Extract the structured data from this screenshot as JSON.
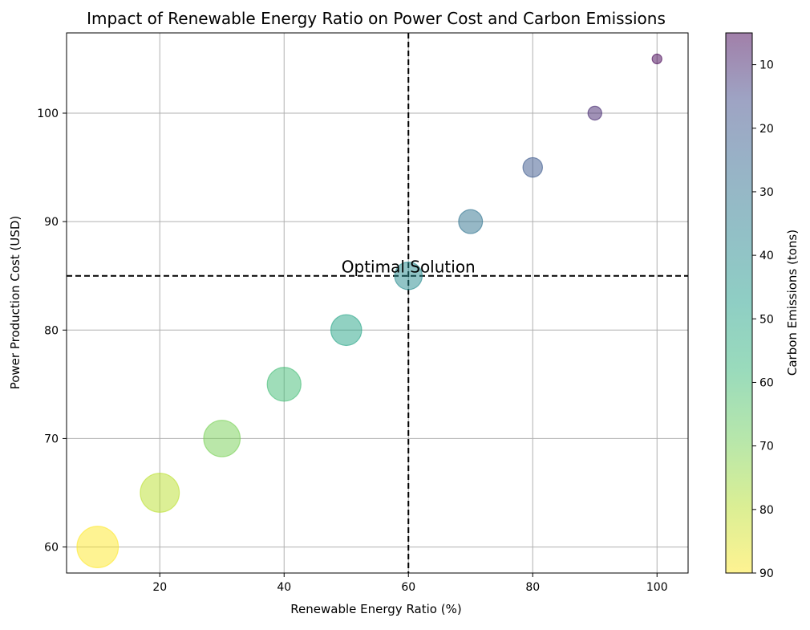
{
  "chart_data": {
    "type": "scatter",
    "title": "Impact of Renewable Energy Ratio on Power Cost and Carbon Emissions",
    "xlabel": "Renewable Energy Ratio (%)",
    "ylabel": "Power Production Cost (USD)",
    "colorbar_label": "Carbon Emissions (tons)",
    "colormap": "viridis_r",
    "marker_alpha": 0.5,
    "grid": true,
    "xlim": [
      5,
      105
    ],
    "ylim": [
      57.6,
      107.4
    ],
    "xticks": [
      20,
      40,
      60,
      80,
      100
    ],
    "yticks": [
      60,
      70,
      80,
      90,
      100
    ],
    "colorbar_range": [
      5,
      90
    ],
    "colorbar_ticks": [
      10,
      20,
      30,
      40,
      50,
      60,
      70,
      80,
      90
    ],
    "points": [
      {
        "x": 10,
        "y": 60,
        "carbon": 90
      },
      {
        "x": 20,
        "y": 65,
        "carbon": 80
      },
      {
        "x": 30,
        "y": 70,
        "carbon": 70
      },
      {
        "x": 40,
        "y": 75,
        "carbon": 60
      },
      {
        "x": 50,
        "y": 80,
        "carbon": 50
      },
      {
        "x": 60,
        "y": 85,
        "carbon": 40
      },
      {
        "x": 70,
        "y": 90,
        "carbon": 30
      },
      {
        "x": 80,
        "y": 95,
        "carbon": 20
      },
      {
        "x": 90,
        "y": 100,
        "carbon": 10
      },
      {
        "x": 100,
        "y": 105,
        "carbon": 5
      }
    ],
    "reference_lines": {
      "x": 60,
      "y": 85,
      "style": "dashed",
      "color": "#000000"
    },
    "annotation": {
      "text": "Optimal Solution",
      "x": 60,
      "y": 85
    }
  }
}
